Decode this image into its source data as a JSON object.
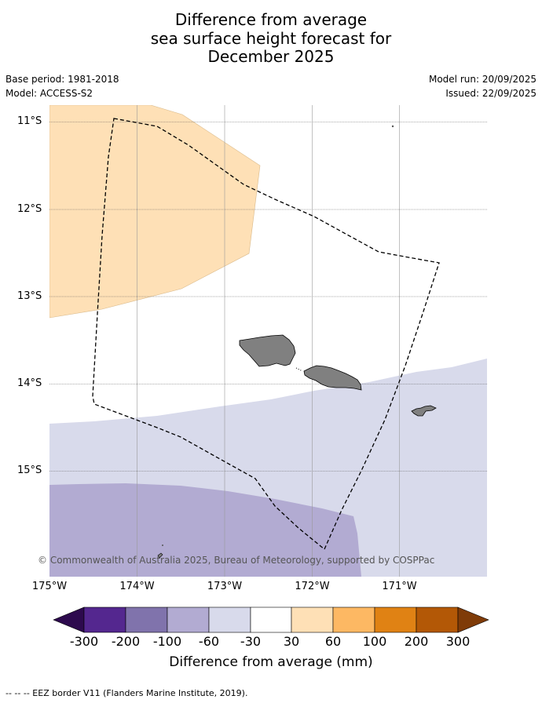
{
  "title": {
    "line1": "Difference from average",
    "line2": "sea surface height forecast for",
    "line3": "December 2025"
  },
  "meta": {
    "base_period": "Base period: 1981-2018",
    "model": "Model: ACCESS-S2",
    "model_run": "Model run: 20/09/2025",
    "issued": "Issued: 22/09/2025"
  },
  "axes": {
    "lat_labels": [
      "11°S",
      "12°S",
      "13°S",
      "14°S",
      "15°S"
    ],
    "lon_labels": [
      "175°W",
      "174°W",
      "173°W",
      "172°W",
      "171°W"
    ]
  },
  "copyright": "© Commonwealth of Australia 2025, Bureau of Meteorology, supported by COSPPac",
  "colorbar": {
    "title": "Difference from average (mm)",
    "ticks": [
      "-300",
      "-200",
      "-100",
      "-60",
      "-30",
      "30",
      "60",
      "100",
      "200",
      "300"
    ],
    "colors": {
      "under": "#2d0a4e",
      "c1": "#54278f",
      "c2": "#8073ac",
      "c3": "#b2abd2",
      "c4": "#d8daeb",
      "c5": "#ffffff",
      "c6": "#fee0b6",
      "c7": "#fdb863",
      "c8": "#e08214",
      "c9": "#b35806",
      "over": "#7f3b08"
    }
  },
  "map_colors": {
    "orange_region": "#fee0b6",
    "lavender_region": "#d8daeb",
    "purple_region": "#b2abd2",
    "land": "#808080"
  },
  "footer": "--  --  -- EEZ border V11 (Flanders Marine Institute, 2019)."
}
